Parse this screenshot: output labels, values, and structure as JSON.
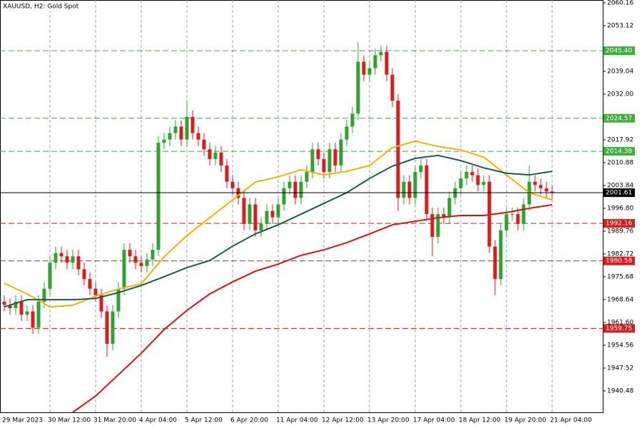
{
  "chart_data": {
    "type": "candlestick",
    "title": "XAUUSD, H2:  Gold Spot",
    "categories": [
      "29 Mar 2023",
      null,
      null,
      null,
      null,
      null,
      null,
      null,
      "30 Mar 12:00",
      null,
      null,
      null,
      null,
      null,
      null,
      null,
      "31 Mar 20:00",
      null,
      null,
      null,
      null,
      null,
      null,
      null,
      "4 Apr 04:00",
      null,
      null,
      null,
      null,
      null,
      null,
      null,
      "5 Apr 12:00",
      null,
      null,
      null,
      null,
      null,
      null,
      null,
      "6 Apr 20:00",
      null,
      null,
      null,
      null,
      null,
      null,
      null,
      "11 Apr 04:00",
      null,
      null,
      null,
      null,
      null,
      null,
      null,
      "12 Apr 12:00",
      null,
      null,
      null,
      null,
      null,
      null,
      null,
      "13 Apr 20:00",
      null,
      null,
      null,
      null,
      null,
      null,
      null,
      "17 Apr 04:00",
      null,
      null,
      null,
      null,
      null,
      null,
      null,
      "18 Apr 12:00",
      null,
      null,
      null,
      null,
      null,
      null,
      null,
      "19 Apr 20:00",
      null,
      null,
      null,
      null,
      null,
      null,
      null,
      "21 Apr 04:00"
    ],
    "open": [
      1968,
      1967,
      1966,
      1968,
      1964,
      1965,
      1960,
      1968,
      1972,
      1980,
      1983,
      1982,
      1980,
      1982,
      1978,
      1975,
      1972,
      1970,
      1965,
      1955,
      1965,
      1972,
      1984,
      1982,
      1980,
      1979,
      1981,
      1984,
      2017,
      2018,
      2020,
      2022,
      2018,
      2025,
      2020,
      2018,
      2015,
      2012,
      2014,
      2010,
      2005,
      2003,
      2000,
      1992,
      1998,
      1990,
      1992,
      1996,
      1994,
      1998,
      2003,
      2005,
      2000,
      2005,
      2008,
      2015,
      2012,
      2008,
      2015,
      2010,
      2018,
      2022,
      2026,
      2042,
      2038,
      2040,
      2044,
      2045,
      2038,
      2030,
      2000,
      2005,
      2000,
      2008,
      2010,
      1995,
      1988,
      1995,
      1994,
      2000,
      2003,
      2006,
      2008,
      2007,
      2004,
      2005,
      1985,
      1975,
      1990,
      1995,
      1995,
      1992,
      1998,
      2005,
      2004,
      2003,
      2002
    ],
    "high": [
      1970,
      1969,
      1970,
      1970,
      1967,
      1967,
      1970,
      1974,
      1982,
      1985,
      1985,
      1984,
      1984,
      1984,
      1980,
      1977,
      1974,
      1972,
      1967,
      1967,
      1974,
      1986,
      1986,
      1984,
      1982,
      1983,
      1986,
      2019,
      2020,
      2022,
      2024,
      2024,
      2030,
      2027,
      2022,
      2020,
      2017,
      2016,
      2016,
      2012,
      2007,
      2005,
      2002,
      2000,
      2000,
      1994,
      1998,
      1998,
      2000,
      2005,
      2007,
      2007,
      2007,
      2010,
      2017,
      2017,
      2014,
      2017,
      2017,
      2020,
      2024,
      2028,
      2048,
      2044,
      2042,
      2046,
      2047,
      2047,
      2040,
      2032,
      2007,
      2007,
      2010,
      2012,
      2012,
      1997,
      1997,
      1997,
      2002,
      2005,
      2008,
      2010,
      2010,
      2009,
      2007,
      2007,
      1987,
      1992,
      1997,
      1997,
      1997,
      2000,
      2010,
      2007,
      2006,
      2005,
      2004
    ],
    "low": [
      1965,
      1964,
      1964,
      1962,
      1962,
      1958,
      1958,
      1966,
      1970,
      1978,
      1980,
      1978,
      1978,
      1976,
      1973,
      1970,
      1968,
      1963,
      1951,
      1953,
      1963,
      1970,
      1980,
      1978,
      1977,
      1977,
      1979,
      1982,
      2015,
      2016,
      2018,
      2016,
      2016,
      2018,
      2016,
      2013,
      2010,
      2010,
      2008,
      2003,
      2001,
      1998,
      1990,
      1990,
      1988,
      1988,
      1990,
      1992,
      1992,
      1996,
      2001,
      1998,
      1998,
      2003,
      2006,
      2010,
      2006,
      2006,
      2008,
      2008,
      2016,
      2020,
      2024,
      2036,
      2036,
      2038,
      2042,
      2036,
      2028,
      1996,
      1998,
      1998,
      1998,
      2006,
      1993,
      1982,
      1986,
      1992,
      1992,
      1998,
      2001,
      2004,
      2005,
      2002,
      2002,
      1983,
      1970,
      1973,
      1988,
      1993,
      1990,
      1990,
      1996,
      2002,
      2001,
      2000,
      1999.6
    ],
    "close": [
      1967,
      1966,
      1968,
      1964,
      1965,
      1960,
      1968,
      1972,
      1980,
      1983,
      1982,
      1980,
      1982,
      1978,
      1975,
      1972,
      1970,
      1965,
      1955,
      1965,
      1972,
      1984,
      1982,
      1980,
      1979,
      1981,
      1984,
      2017,
      2018,
      2020,
      2022,
      2018,
      2025,
      2020,
      2018,
      2015,
      2012,
      2014,
      2010,
      2005,
      2003,
      2000,
      1992,
      1998,
      1990,
      1992,
      1996,
      1994,
      1998,
      2003,
      2005,
      2000,
      2005,
      2008,
      2015,
      2012,
      2008,
      2015,
      2010,
      2018,
      2022,
      2026,
      2042,
      2038,
      2040,
      2044,
      2045,
      2038,
      2030,
      2000,
      2005,
      2000,
      2008,
      2010,
      1995,
      1988,
      1995,
      1994,
      2000,
      2003,
      2006,
      2008,
      2007,
      2004,
      2005,
      1985,
      1975,
      1990,
      1995,
      1995,
      1992,
      1998,
      2005,
      2004,
      2003,
      2002,
      2001.61
    ],
    "up_color": "#2ea32e",
    "down_color": "#d91c1c",
    "lines": [
      {
        "color": "#f0b400",
        "x": [
          0,
          4,
          8,
          12,
          16,
          20,
          24,
          28,
          32,
          36,
          40,
          44,
          48,
          52,
          56,
          60,
          64,
          68,
          72,
          76,
          80,
          84,
          88,
          92,
          96
        ],
        "values": [
          1973.7,
          1970.4,
          1966.4,
          1966.9,
          1969.7,
          1971.9,
          1973.5,
          1981.8,
          1988.4,
          1993.9,
          1999.4,
          2004.9,
          2006.5,
          2008.7,
          2007.1,
          2008.2,
          2010,
          2015.5,
          2017.5,
          2015.9,
          2014.8,
          2012.6,
          2007.1,
          2001.6,
          1999.4
        ]
      },
      {
        "color": "#1f5a46",
        "x": [
          0,
          4,
          8,
          12,
          16,
          20,
          24,
          28,
          32,
          36,
          40,
          44,
          48,
          52,
          56,
          60,
          64,
          68,
          72,
          76,
          80,
          84,
          88,
          92,
          96
        ],
        "values": [
          1966.4,
          1968.6,
          1968.6,
          1968.6,
          1969,
          1970.8,
          1973,
          1975.7,
          1978.5,
          1980.7,
          1985.1,
          1988.9,
          1991.7,
          1995,
          1998.3,
          2001.6,
          2006,
          2009.8,
          2012.2,
          2013.1,
          2011.5,
          2009.3,
          2007.6,
          2007.1,
          2008.2
        ]
      },
      {
        "color": "#e01010",
        "x": [
          12,
          16,
          20,
          24,
          28,
          32,
          36,
          40,
          44,
          48,
          52,
          56,
          60,
          64,
          68,
          72,
          76,
          80,
          84,
          88,
          92,
          96
        ],
        "values": [
          1933.9,
          1938.9,
          1945.5,
          1952.1,
          1959.4,
          1965.3,
          1970.4,
          1974.1,
          1977.4,
          1979.6,
          1982.3,
          1984,
          1986.2,
          1988.9,
          1991.7,
          1992.8,
          1993.9,
          1994.6,
          1994.6,
          1995.5,
          1996.8,
          1997.9
        ]
      }
    ],
    "levels": [
      {
        "value": 2045.4,
        "label": "2045.40",
        "color": "#3cae3c"
      },
      {
        "value": 2024.57,
        "label": "2024.57",
        "color": "#3cae3c"
      },
      {
        "value": 2014.38,
        "label": "2014.38",
        "color": "#3cae3c"
      },
      {
        "value": 1992.16,
        "label": "1992.16",
        "color": "#d91c1c"
      },
      {
        "value": 1980.58,
        "label": "1980.58",
        "color": "#d91c1c"
      },
      {
        "value": 1959.75,
        "label": "1959.75",
        "color": "#d91c1c"
      }
    ],
    "current_price": {
      "value": 2001.61,
      "label": "2001.61"
    },
    "ylim": [
      1933.88,
      2061.04
    ],
    "yticks": [
      2060.16,
      2053.12,
      2039.04,
      {
        "value": 2032,
        "label": "2032.00"
      },
      2017.92,
      2010.88,
      2003.84,
      {
        "value": 1996.8,
        "label": "1996.80"
      },
      1989.76,
      1982.72,
      1975.68,
      1968.64,
      {
        "value": 1961.6,
        "label": "1961.60"
      },
      1954.56,
      1947.52,
      1940.48
    ],
    "grid": true
  }
}
